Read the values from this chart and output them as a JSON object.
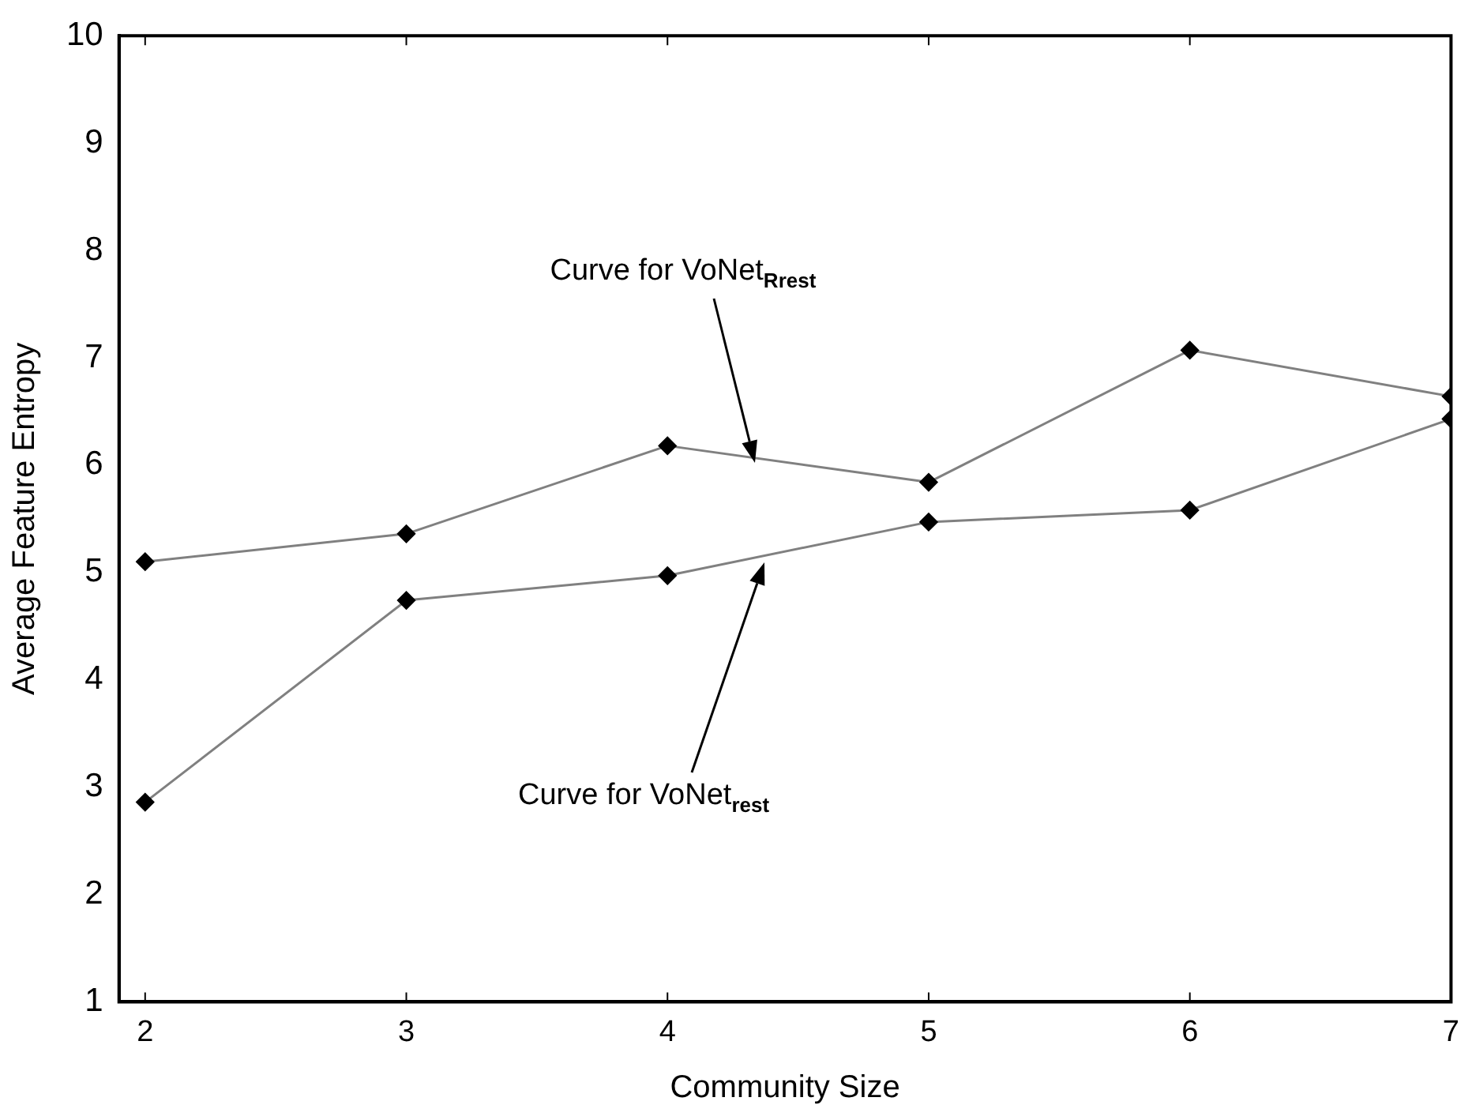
{
  "chart_data": {
    "type": "line",
    "xlabel": "Community Size",
    "ylabel": "Average Feature Entropy",
    "x": [
      2,
      3,
      4,
      5,
      6,
      7
    ],
    "series": [
      {
        "color": "#808080",
        "values": [
          5.1,
          5.36,
          6.18,
          5.84,
          7.07,
          6.64
        ]
      },
      {
        "color": "#808080",
        "values": [
          2.86,
          4.74,
          4.97,
          5.47,
          5.58,
          6.43
        ]
      }
    ],
    "xlim": [
      1.9,
      7
    ],
    "xticks": [
      2,
      3,
      4,
      5,
      6,
      7
    ],
    "ylim": [
      1,
      10
    ],
    "yticks": [
      1,
      2,
      3,
      4,
      5,
      6,
      7,
      8,
      9,
      10
    ],
    "grid": false,
    "legend": false,
    "marker": "diamond",
    "line_style": "solid",
    "annotations": [
      "Curve for VoNet$_{Rrest}$",
      "Curve for VoNet$_{rest}$"
    ]
  }
}
